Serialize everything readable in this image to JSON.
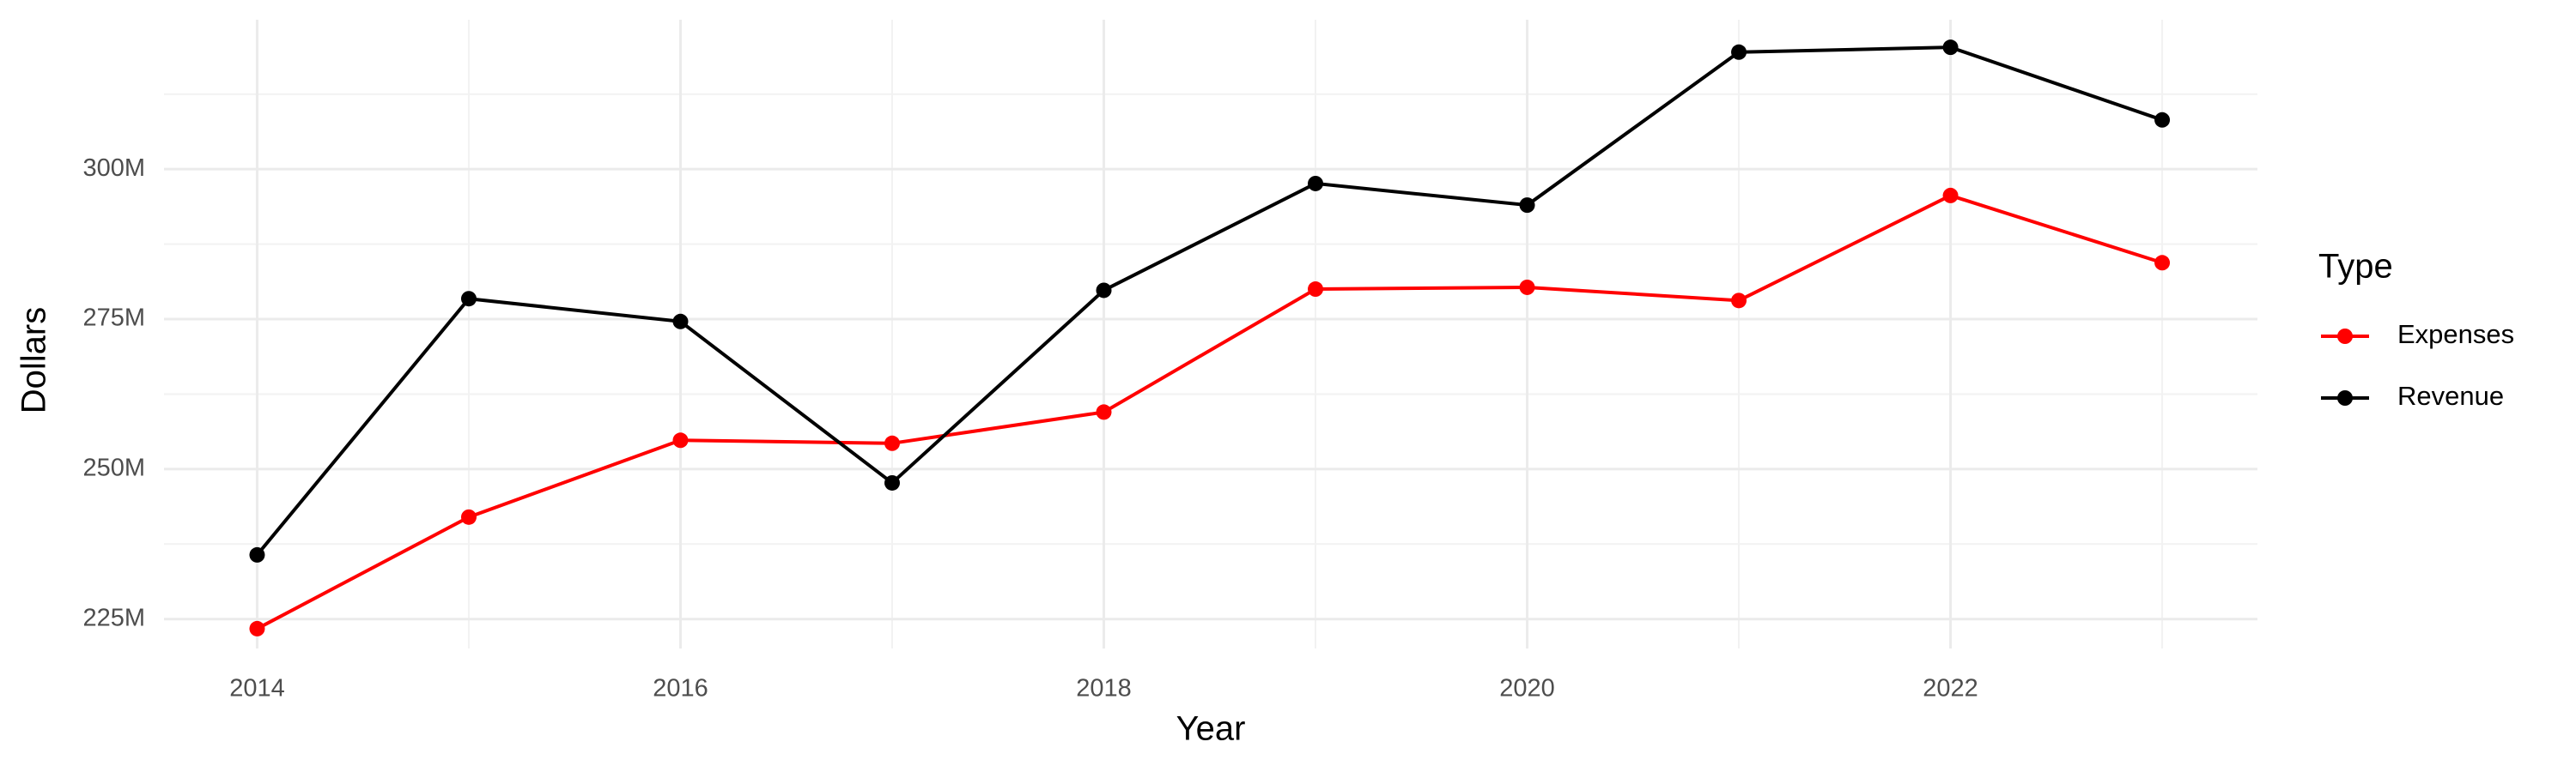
{
  "chart_data": {
    "type": "line",
    "x_label": "Year",
    "y_label": "Dollars",
    "legend_title": "Type",
    "x": [
      2014,
      2015,
      2016,
      2017,
      2018,
      2019,
      2020,
      2021,
      2022,
      2023
    ],
    "series": [
      {
        "name": "Expenses",
        "color": "#ff0000",
        "values": [
          223400000,
          242000000,
          254800000,
          254300000,
          259500000,
          280000000,
          280300000,
          278100000,
          295600000,
          284400000
        ]
      },
      {
        "name": "Revenue",
        "color": "#000000",
        "values": [
          235700000,
          278400000,
          274600000,
          247700000,
          279800000,
          297600000,
          294000000,
          319500000,
          320300000,
          308200000
        ]
      }
    ],
    "xlim": [
      2013.56,
      2023.45
    ],
    "xticks": [
      2014,
      2016,
      2018,
      2020,
      2022
    ],
    "ylim": [
      220100000,
      324900000
    ],
    "yticks": [
      {
        "value": 225000000,
        "label": "225M"
      },
      {
        "value": 250000000,
        "label": "250M"
      },
      {
        "value": 275000000,
        "label": "275M"
      },
      {
        "value": 300000000,
        "label": "300M"
      }
    ],
    "grid": true
  }
}
